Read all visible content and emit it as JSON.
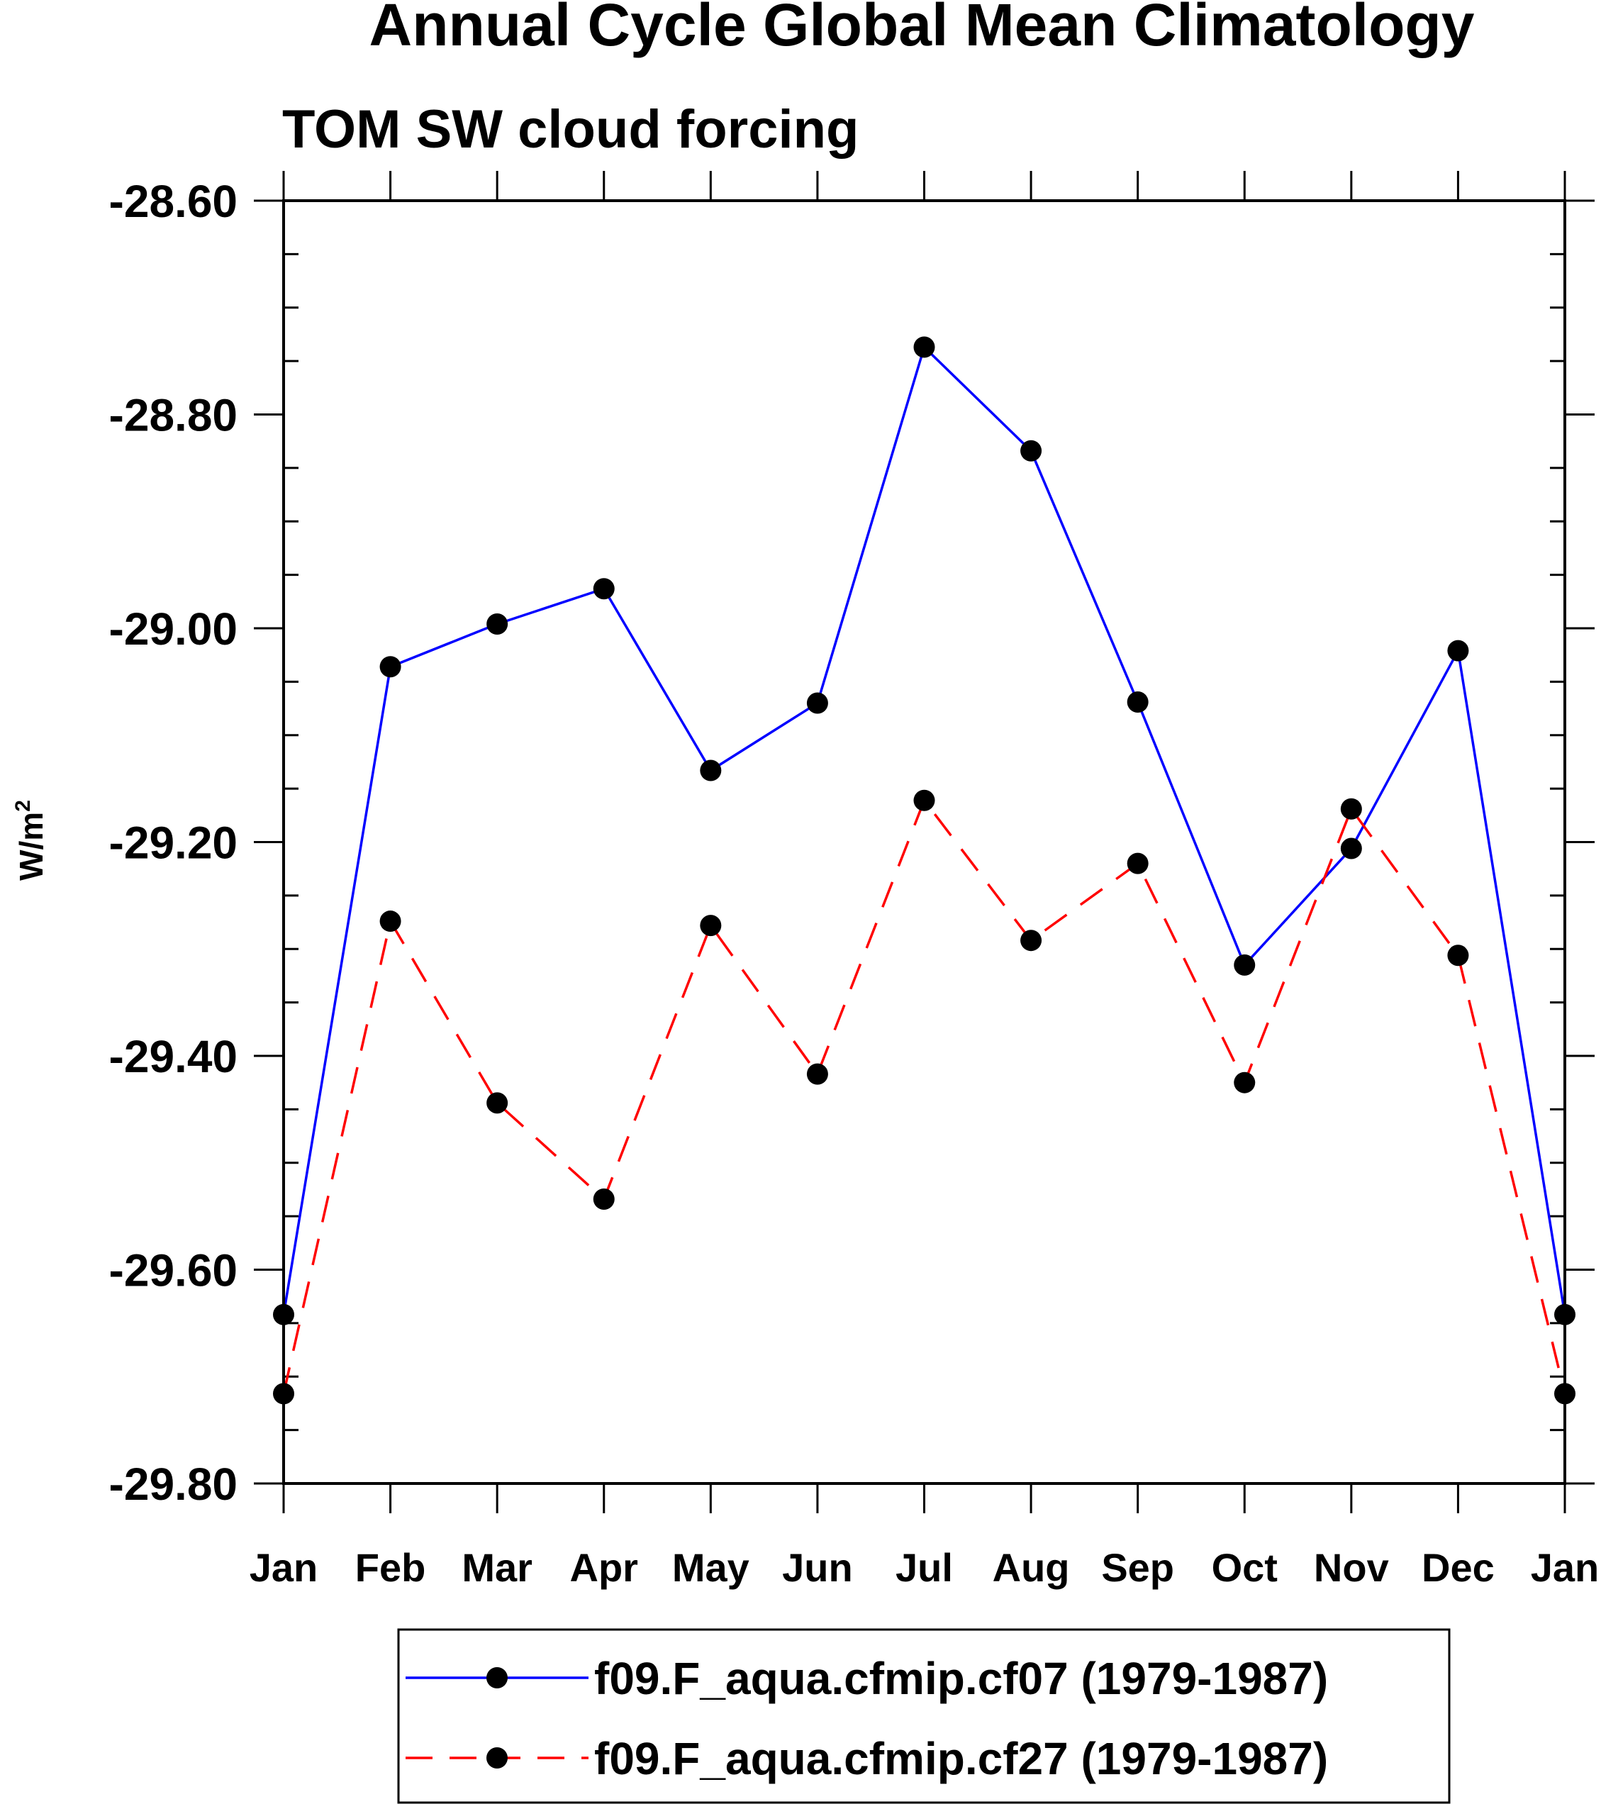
{
  "chart_data": {
    "type": "line",
    "title": "Annual Cycle Global Mean Climatology",
    "subtitle": "TOM SW cloud forcing",
    "xlabel": "",
    "ylabel": "W/m",
    "ylabel_superscript": "2",
    "categories": [
      "Jan",
      "Feb",
      "Mar",
      "Apr",
      "May",
      "Jun",
      "Jul",
      "Aug",
      "Sep",
      "Oct",
      "Nov",
      "Dec",
      "Jan"
    ],
    "ylim": [
      -29.8,
      -28.6
    ],
    "yticks": [
      -28.6,
      -28.8,
      -29.0,
      -29.2,
      -29.4,
      -29.6,
      -29.8
    ],
    "ytick_labels": [
      "-28.60",
      "-28.80",
      "-29.00",
      "-29.20",
      "-29.40",
      "-29.60",
      "-29.80"
    ],
    "grid": false,
    "legend_position": "bottom",
    "series": [
      {
        "name": "f09.F_aqua.cfmip.cf07 (1979-1987)",
        "color": "#0000ff",
        "dash": "solid",
        "marker": "filled-circle",
        "values": [
          -29.642,
          -29.036,
          -28.996,
          -28.963,
          -29.133,
          -29.07,
          -28.737,
          -28.834,
          -29.069,
          -29.315,
          -29.206,
          -29.021,
          -29.642
        ]
      },
      {
        "name": "f09.F_aqua.cfmip.cf27 (1979-1987)",
        "color": "#ff0000",
        "dash": "dashed",
        "marker": "filled-circle",
        "values": [
          -29.716,
          -29.274,
          -29.444,
          -29.534,
          -29.278,
          -29.417,
          -29.161,
          -29.292,
          -29.22,
          -29.425,
          -29.169,
          -29.306,
          -29.716
        ]
      }
    ]
  }
}
